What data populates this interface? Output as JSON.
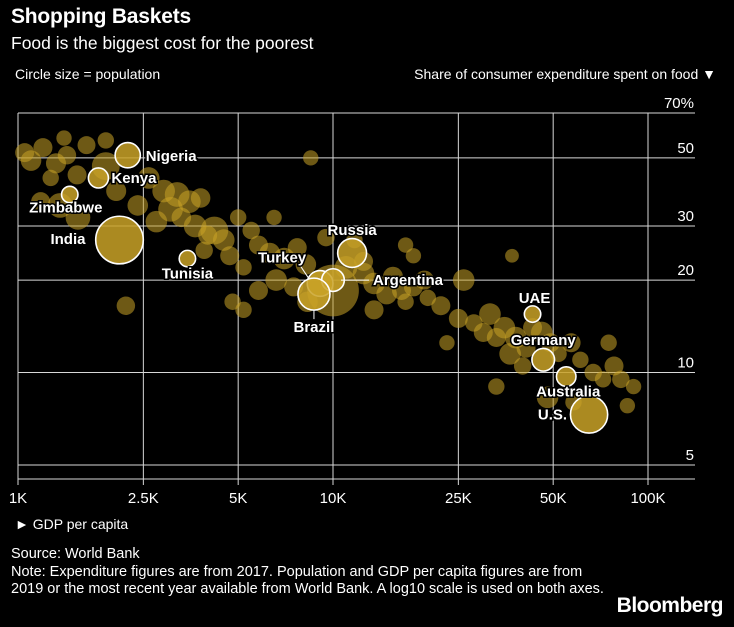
{
  "header": {
    "title": "Shopping Baskets",
    "subtitle": "Food is the biggest cost for the poorest",
    "size_note": "Circle size = population",
    "y_axis_title": "Share of consumer expenditure spent on food ▼",
    "x_axis_title": "► GDP per capita"
  },
  "footer": {
    "source": "Source: World Bank",
    "note": "Note: Expenditure figures are from 2017. Population and GDP per capita figures are from 2019 or the most recent year available from World Bank. A log10 scale is used on both axes.",
    "brand": "Bloomberg"
  },
  "chart_data": {
    "type": "scatter",
    "x_scale": "log10",
    "y_scale": "log10",
    "xlim": [
      1000,
      100000
    ],
    "ylim": [
      4.5,
      70
    ],
    "x_ticks": [
      {
        "value": 1000,
        "label": "1K"
      },
      {
        "value": 2500,
        "label": "2.5K"
      },
      {
        "value": 5000,
        "label": "5K"
      },
      {
        "value": 10000,
        "label": "10K"
      },
      {
        "value": 25000,
        "label": "25K"
      },
      {
        "value": 50000,
        "label": "50K"
      },
      {
        "value": 100000,
        "label": "100K"
      }
    ],
    "y_ticks": [
      {
        "value": 70,
        "label": "70%"
      },
      {
        "value": 50,
        "label": "50"
      },
      {
        "value": 30,
        "label": "30"
      },
      {
        "value": 20,
        "label": "20"
      },
      {
        "value": 10,
        "label": "10"
      },
      {
        "value": 5,
        "label": "5"
      }
    ],
    "colors": {
      "fill": "#c9a227",
      "stroke": "#ffffff",
      "grid": "#d8d8d8"
    },
    "labeled_points": [
      {
        "label": "Nigeria",
        "gdp": 2230,
        "food_share": 51,
        "size": 0.37
      },
      {
        "label": "Kenya",
        "gdp": 1800,
        "food_share": 43,
        "size": 0.27
      },
      {
        "label": "Zimbabwe",
        "gdp": 1460,
        "food_share": 38,
        "size": 0.2
      },
      {
        "label": "India",
        "gdp": 2100,
        "food_share": 27,
        "size": 0.8
      },
      {
        "label": "Tunisia",
        "gdp": 3450,
        "food_share": 23.5,
        "size": 0.2
      },
      {
        "label": "Turkey",
        "gdp": 9100,
        "food_share": 19.5,
        "size": 0.38
      },
      {
        "label": "Russia",
        "gdp": 11500,
        "food_share": 24.5,
        "size": 0.44
      },
      {
        "label": "Argentina",
        "gdp": 10000,
        "food_share": 20,
        "size": 0.32
      },
      {
        "label": "Brazil",
        "gdp": 8700,
        "food_share": 18,
        "size": 0.5
      },
      {
        "label": "UAE",
        "gdp": 43000,
        "food_share": 15.5,
        "size": 0.2
      },
      {
        "label": "Germany",
        "gdp": 46500,
        "food_share": 11,
        "size": 0.32
      },
      {
        "label": "Australia",
        "gdp": 55000,
        "food_share": 9.7,
        "size": 0.26
      },
      {
        "label": "U.S.",
        "gdp": 65000,
        "food_share": 7.3,
        "size": 0.6
      }
    ],
    "other_points": [
      {
        "gdp": 1050,
        "food_share": 52,
        "size": 0.25
      },
      {
        "gdp": 1100,
        "food_share": 49,
        "size": 0.28
      },
      {
        "gdp": 1200,
        "food_share": 54,
        "size": 0.25
      },
      {
        "gdp": 1320,
        "food_share": 48,
        "size": 0.27
      },
      {
        "gdp": 1430,
        "food_share": 51,
        "size": 0.24
      },
      {
        "gdp": 1540,
        "food_share": 44,
        "size": 0.25
      },
      {
        "gdp": 1650,
        "food_share": 55,
        "size": 0.23
      },
      {
        "gdp": 1270,
        "food_share": 43,
        "size": 0.2
      },
      {
        "gdp": 1360,
        "food_share": 35,
        "size": 0.36
      },
      {
        "gdp": 1550,
        "food_share": 32,
        "size": 0.36
      },
      {
        "gdp": 1180,
        "food_share": 36,
        "size": 0.25
      },
      {
        "gdp": 1900,
        "food_share": 47,
        "size": 0.42
      },
      {
        "gdp": 2050,
        "food_share": 39,
        "size": 0.27
      },
      {
        "gdp": 2600,
        "food_share": 43,
        "size": 0.3
      },
      {
        "gdp": 2900,
        "food_share": 39,
        "size": 0.32
      },
      {
        "gdp": 3200,
        "food_share": 38,
        "size": 0.36
      },
      {
        "gdp": 3500,
        "food_share": 36,
        "size": 0.32
      },
      {
        "gdp": 3800,
        "food_share": 37,
        "size": 0.26
      },
      {
        "gdp": 2400,
        "food_share": 35,
        "size": 0.28
      },
      {
        "gdp": 2750,
        "food_share": 31,
        "size": 0.3
      },
      {
        "gdp": 3050,
        "food_share": 34,
        "size": 0.36
      },
      {
        "gdp": 3300,
        "food_share": 32,
        "size": 0.26
      },
      {
        "gdp": 3650,
        "food_share": 30,
        "size": 0.32
      },
      {
        "gdp": 4000,
        "food_share": 28,
        "size": 0.25
      },
      {
        "gdp": 4200,
        "food_share": 29,
        "size": 0.42
      },
      {
        "gdp": 4500,
        "food_share": 27,
        "size": 0.3
      },
      {
        "gdp": 5000,
        "food_share": 32,
        "size": 0.2
      },
      {
        "gdp": 5500,
        "food_share": 29,
        "size": 0.22
      },
      {
        "gdp": 3900,
        "food_share": 25,
        "size": 0.22
      },
      {
        "gdp": 4700,
        "food_share": 24,
        "size": 0.25
      },
      {
        "gdp": 5200,
        "food_share": 22,
        "size": 0.2
      },
      {
        "gdp": 5800,
        "food_share": 26,
        "size": 0.25
      },
      {
        "gdp": 6300,
        "food_share": 24.5,
        "size": 0.28
      },
      {
        "gdp": 7000,
        "food_share": 23.5,
        "size": 0.3
      },
      {
        "gdp": 7700,
        "food_share": 25.5,
        "size": 0.25
      },
      {
        "gdp": 8200,
        "food_share": 22.5,
        "size": 0.28
      },
      {
        "gdp": 6600,
        "food_share": 20,
        "size": 0.3
      },
      {
        "gdp": 5800,
        "food_share": 18.5,
        "size": 0.25
      },
      {
        "gdp": 4800,
        "food_share": 17,
        "size": 0.2
      },
      {
        "gdp": 7500,
        "food_share": 19,
        "size": 0.25
      },
      {
        "gdp": 8300,
        "food_share": 17,
        "size": 0.28
      },
      {
        "gdp": 10000,
        "food_share": 18.5,
        "size": 0.88
      },
      {
        "gdp": 11000,
        "food_share": 22,
        "size": 0.32
      },
      {
        "gdp": 12500,
        "food_share": 21,
        "size": 0.3
      },
      {
        "gdp": 13500,
        "food_share": 19.5,
        "size": 0.3
      },
      {
        "gdp": 14800,
        "food_share": 18,
        "size": 0.28
      },
      {
        "gdp": 15500,
        "food_share": 20.5,
        "size": 0.27
      },
      {
        "gdp": 16500,
        "food_share": 18.5,
        "size": 0.25
      },
      {
        "gdp": 18000,
        "food_share": 19,
        "size": 0.25
      },
      {
        "gdp": 19500,
        "food_share": 20,
        "size": 0.25
      },
      {
        "gdp": 17000,
        "food_share": 17,
        "size": 0.2
      },
      {
        "gdp": 20000,
        "food_share": 17.5,
        "size": 0.2
      },
      {
        "gdp": 13500,
        "food_share": 16,
        "size": 0.25
      },
      {
        "gdp": 12500,
        "food_share": 23,
        "size": 0.25
      },
      {
        "gdp": 11700,
        "food_share": 27,
        "size": 0.2
      },
      {
        "gdp": 17000,
        "food_share": 26,
        "size": 0.18
      },
      {
        "gdp": 22000,
        "food_share": 16.5,
        "size": 0.25
      },
      {
        "gdp": 25000,
        "food_share": 15,
        "size": 0.25
      },
      {
        "gdp": 26000,
        "food_share": 20,
        "size": 0.3
      },
      {
        "gdp": 28000,
        "food_share": 14.5,
        "size": 0.22
      },
      {
        "gdp": 30000,
        "food_share": 13.5,
        "size": 0.25
      },
      {
        "gdp": 31500,
        "food_share": 15.5,
        "size": 0.3
      },
      {
        "gdp": 33000,
        "food_share": 13,
        "size": 0.25
      },
      {
        "gdp": 35000,
        "food_share": 14,
        "size": 0.3
      },
      {
        "gdp": 36500,
        "food_share": 11.5,
        "size": 0.3
      },
      {
        "gdp": 38000,
        "food_share": 13,
        "size": 0.3
      },
      {
        "gdp": 41000,
        "food_share": 12,
        "size": 0.25
      },
      {
        "gdp": 43000,
        "food_share": 14,
        "size": 0.25
      },
      {
        "gdp": 46000,
        "food_share": 13.5,
        "size": 0.3
      },
      {
        "gdp": 49000,
        "food_share": 12.5,
        "size": 0.25
      },
      {
        "gdp": 52000,
        "food_share": 11.5,
        "size": 0.2
      },
      {
        "gdp": 57000,
        "food_share": 12.5,
        "size": 0.25
      },
      {
        "gdp": 61000,
        "food_share": 11,
        "size": 0.2
      },
      {
        "gdp": 67000,
        "food_share": 10,
        "size": 0.22
      },
      {
        "gdp": 72000,
        "food_share": 9.5,
        "size": 0.2
      },
      {
        "gdp": 78000,
        "food_share": 10.5,
        "size": 0.25
      },
      {
        "gdp": 82000,
        "food_share": 9.5,
        "size": 0.22
      },
      {
        "gdp": 86000,
        "food_share": 7.8,
        "size": 0.18
      },
      {
        "gdp": 75000,
        "food_share": 12.5,
        "size": 0.2
      },
      {
        "gdp": 90000,
        "food_share": 9.0,
        "size": 0.18
      },
      {
        "gdp": 48000,
        "food_share": 8.3,
        "size": 0.3
      },
      {
        "gdp": 58000,
        "food_share": 8.0,
        "size": 0.2
      },
      {
        "gdp": 33000,
        "food_share": 9.0,
        "size": 0.2
      },
      {
        "gdp": 40000,
        "food_share": 10.5,
        "size": 0.22
      },
      {
        "gdp": 23000,
        "food_share": 12.5,
        "size": 0.18
      },
      {
        "gdp": 2200,
        "food_share": 16.5,
        "size": 0.24
      },
      {
        "gdp": 5200,
        "food_share": 16,
        "size": 0.2
      },
      {
        "gdp": 8500,
        "food_share": 50,
        "size": 0.18
      },
      {
        "gdp": 1400,
        "food_share": 58,
        "size": 0.18
      },
      {
        "gdp": 1900,
        "food_share": 57,
        "size": 0.2
      },
      {
        "gdp": 18000,
        "food_share": 24,
        "size": 0.18
      },
      {
        "gdp": 6500,
        "food_share": 32,
        "size": 0.18
      },
      {
        "gdp": 9500,
        "food_share": 27.5,
        "size": 0.22
      },
      {
        "gdp": 37000,
        "food_share": 24,
        "size": 0.15
      }
    ]
  }
}
